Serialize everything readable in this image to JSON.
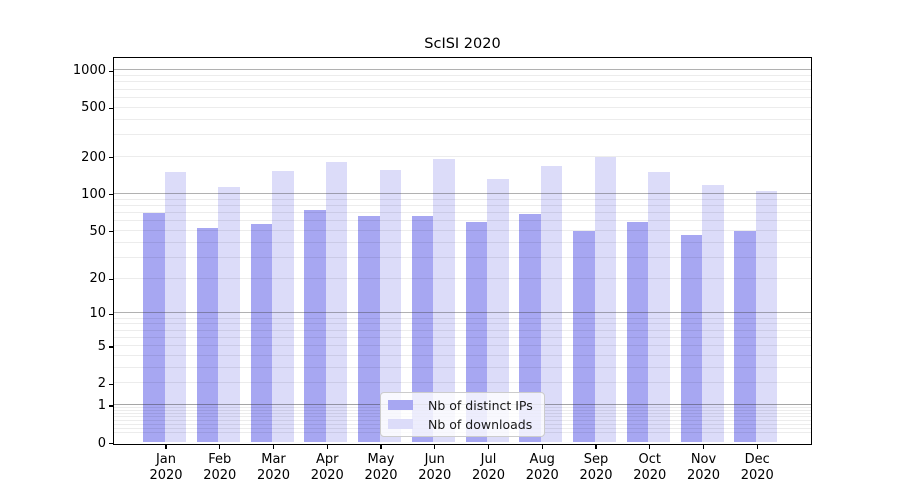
{
  "title": "ScISI 2020",
  "colors": {
    "ips": "#a7a7f2",
    "downloads": "#dcdcf9",
    "grid_major": "#b0b0b0",
    "grid_minor": "#ececec",
    "axis": "#000000"
  },
  "legend": {
    "items": [
      {
        "label": "Nb of distinct IPs",
        "series": "ips"
      },
      {
        "label": "Nb of downloads",
        "series": "downloads"
      }
    ]
  },
  "chart_data": {
    "type": "bar",
    "title": "ScISI 2020",
    "categories": [
      "Jan 2020",
      "Feb 2020",
      "Mar 2020",
      "Apr 2020",
      "May 2020",
      "Jun 2020",
      "Jul 2020",
      "Aug 2020",
      "Sep 2020",
      "Oct 2020",
      "Nov 2020",
      "Dec 2020"
    ],
    "series": [
      {
        "name": "Nb of distinct IPs",
        "values": [
          69,
          52,
          56,
          73,
          65,
          65,
          58,
          68,
          49,
          58,
          45,
          49
        ]
      },
      {
        "name": "Nb of downloads",
        "values": [
          147,
          112,
          152,
          177,
          154,
          187,
          130,
          166,
          197,
          147,
          117,
          103
        ]
      }
    ],
    "xlabel": "",
    "ylabel": "",
    "yscale": "log1p",
    "ylim": [
      0,
      1265
    ],
    "yticks": [
      0,
      1,
      2,
      5,
      10,
      20,
      50,
      100,
      200,
      500,
      1000
    ],
    "grid": "horizontal",
    "legend_position": "lower center"
  }
}
